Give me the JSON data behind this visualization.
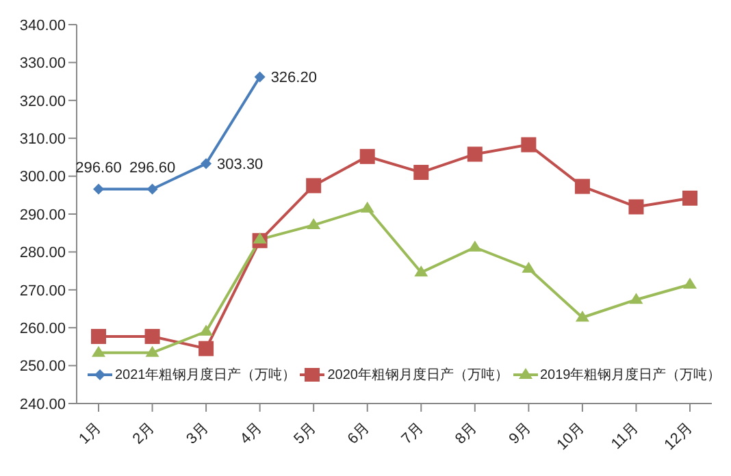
{
  "chart_data": {
    "type": "line",
    "categories": [
      "1月",
      "2月",
      "3月",
      "4月",
      "5月",
      "6月",
      "7月",
      "8月",
      "9月",
      "10月",
      "11月",
      "12月"
    ],
    "series": [
      {
        "name": "2021年粗钢月度日产（万吨）",
        "color": "#4a7ebb",
        "marker": "diamond",
        "values": [
          296.6,
          296.6,
          303.3,
          326.2,
          null,
          null,
          null,
          null,
          null,
          null,
          null,
          null
        ],
        "value_labels": [
          "296.60",
          "296.60",
          "303.30",
          "326.20",
          null,
          null,
          null,
          null,
          null,
          null,
          null,
          null
        ]
      },
      {
        "name": "2020年粗钢月度日产（万吨）",
        "color": "#c0504d",
        "marker": "square",
        "values": [
          257.7,
          257.7,
          254.5,
          283,
          297.5,
          305.2,
          301,
          305.8,
          308.3,
          297.3,
          291.9,
          294.2
        ]
      },
      {
        "name": "2019年粗钢月度日产（万吨）",
        "color": "#9bbb59",
        "marker": "triangle",
        "values": [
          253.4,
          253.4,
          259,
          283.3,
          287.1,
          291.5,
          274.6,
          281.2,
          275.6,
          262.7,
          267.4,
          271.4
        ]
      }
    ],
    "ylim": [
      240,
      340
    ],
    "yticks": [
      {
        "value": 240,
        "label": "240.00"
      },
      {
        "value": 250,
        "label": "250.00"
      },
      {
        "value": 260,
        "label": "260.00"
      },
      {
        "value": 270,
        "label": "270.00"
      },
      {
        "value": 280,
        "label": "280.00"
      },
      {
        "value": 290,
        "label": "290.00"
      },
      {
        "value": 300,
        "label": "300.00"
      },
      {
        "value": 310,
        "label": "310.00"
      },
      {
        "value": 320,
        "label": "320.00"
      },
      {
        "value": 330,
        "label": "330.00"
      },
      {
        "value": 340,
        "label": "340.00"
      }
    ],
    "grid": false,
    "legend": "bottom",
    "line_style": "solid"
  }
}
